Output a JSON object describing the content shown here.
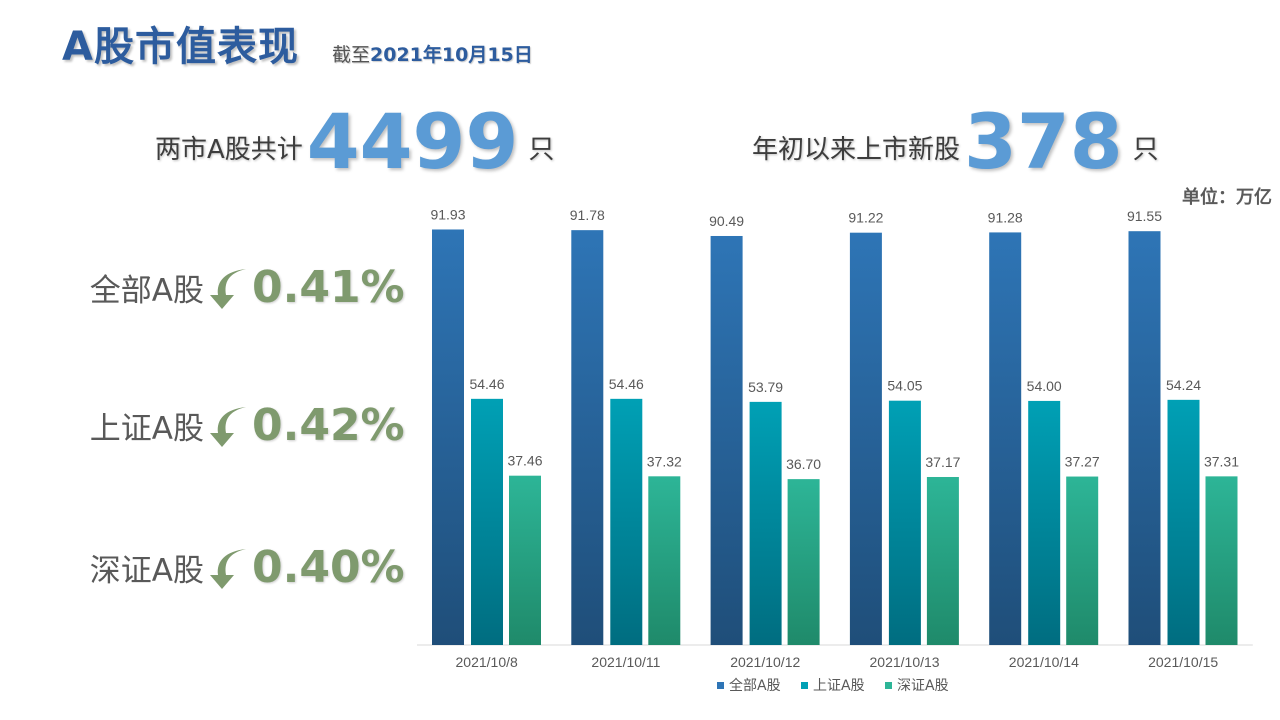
{
  "header": {
    "title": "A股市值表现",
    "asof_prefix": "截至",
    "asof_date": "2021年10月15日"
  },
  "stats": {
    "total_label": "两市A股共计",
    "total_value": "4499",
    "total_unit": "只",
    "new_label": "年初以来上市新股",
    "new_value": "378",
    "new_unit": "只"
  },
  "unit_label": "单位：万亿",
  "performance": [
    {
      "name": "全部A股",
      "direction": "down",
      "value": "0.41%"
    },
    {
      "name": "上证A股",
      "direction": "down",
      "value": "0.42%"
    },
    {
      "name": "深证A股",
      "direction": "down",
      "value": "0.40%"
    }
  ],
  "colors": {
    "title": "#2d5c9e",
    "highlight": "#5b9bd5",
    "perf_green": "#7f9a6e",
    "series_all": "#2e75b6",
    "series_sh": "#00a0b5",
    "series_sz": "#2db597"
  },
  "chart_data": {
    "type": "bar",
    "title": "",
    "xlabel": "",
    "ylabel": "单位：万亿",
    "categories": [
      "2021/10/8",
      "2021/10/11",
      "2021/10/12",
      "2021/10/13",
      "2021/10/14",
      "2021/10/15"
    ],
    "series": [
      {
        "name": "全部A股",
        "values": [
          91.93,
          91.78,
          90.49,
          91.22,
          91.28,
          91.55
        ]
      },
      {
        "name": "上证A股",
        "values": [
          54.46,
          54.46,
          53.79,
          54.05,
          54.0,
          54.24
        ]
      },
      {
        "name": "深证A股",
        "values": [
          37.46,
          37.32,
          36.7,
          37.17,
          37.27,
          37.31
        ]
      }
    ],
    "ylim": [
      0,
      100
    ],
    "grid": false,
    "legend": "bottom",
    "data_labels": true
  }
}
